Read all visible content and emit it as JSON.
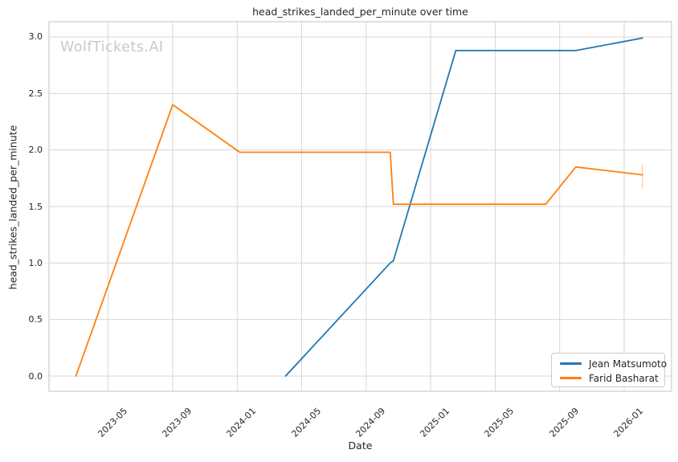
{
  "watermark": "WolfTickets.AI",
  "chart_data": {
    "type": "line",
    "title": "head_strikes_landed_per_minute over time",
    "xlabel": "Date",
    "ylabel": "head_strikes_landed_per_minute",
    "grid": true,
    "legend_position": "lower right",
    "x_tick_labels": [
      "2023-05",
      "2023-09",
      "2024-01",
      "2024-05",
      "2024-09",
      "2025-01",
      "2025-05",
      "2025-09",
      "2026-01"
    ],
    "y_tick_labels": [
      "0.0",
      "0.5",
      "1.0",
      "1.5",
      "2.0",
      "2.5",
      "3.0"
    ],
    "x_range_months_since_2023_01": [
      0.33,
      38.94
    ],
    "ylim": [
      -0.135,
      3.135
    ],
    "colors": {
      "grid": "#d7d7d7",
      "spine": "#cccccc",
      "text": "#262626"
    },
    "series": [
      {
        "name": "Jean Matsumoto",
        "color": "#1f77b4",
        "points": [
          {
            "date": "2024-04-01",
            "value": 0.0
          },
          {
            "date": "2024-10-16",
            "value": 1.0
          },
          {
            "date": "2024-10-22",
            "value": 1.02
          },
          {
            "date": "2025-02-18",
            "value": 2.88
          },
          {
            "date": "2025-10-01",
            "value": 2.88
          },
          {
            "date": "2026-02-05",
            "value": 2.99
          }
        ]
      },
      {
        "name": "Farid Basharat",
        "color": "#ff7f0e",
        "points": [
          {
            "date": "2023-03-01",
            "value": 0.0
          },
          {
            "date": "2023-09-01",
            "value": 2.4
          },
          {
            "date": "2024-01-06",
            "value": 1.98
          },
          {
            "date": "2024-10-16",
            "value": 1.98
          },
          {
            "date": "2024-10-22",
            "value": 1.52
          },
          {
            "date": "2025-08-05",
            "value": 1.52
          },
          {
            "date": "2025-10-01",
            "value": 1.85
          },
          {
            "date": "2026-02-05",
            "value": 1.78
          }
        ],
        "end_tick": {
          "date": "2026-02-05",
          "value_low": 1.66,
          "value_high": 1.87
        }
      }
    ]
  }
}
